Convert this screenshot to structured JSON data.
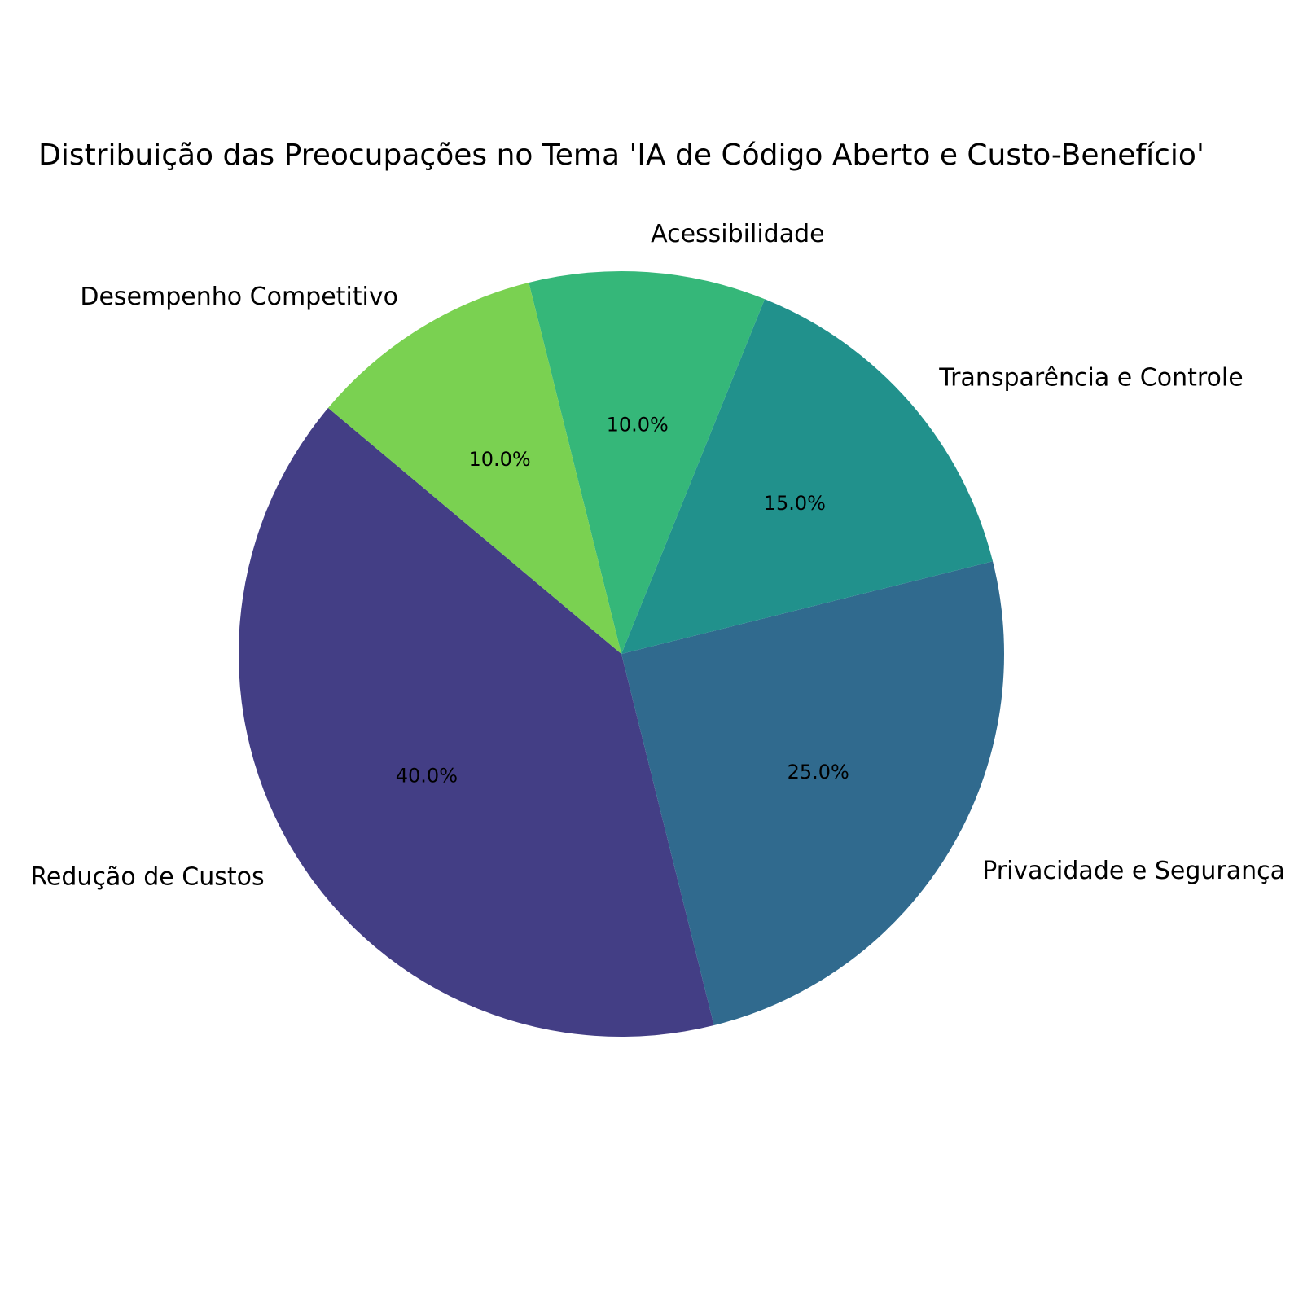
{
  "chart_data": {
    "type": "pie",
    "title": "Distribuição das Preocupações no Tema 'IA de Código Aberto e Custo-Benefício'",
    "categories": [
      "Redução de Custos",
      "Privacidade e Segurança",
      "Transparência e Controle",
      "Acessibilidade",
      "Desempenho Competitivo"
    ],
    "values": [
      40,
      25,
      15,
      10,
      10
    ],
    "percent_labels": [
      "40.0%",
      "25.0%",
      "15.0%",
      "10.0%",
      "10.0%"
    ],
    "colors": [
      "#433e85",
      "#306a8e",
      "#21918c",
      "#35b779",
      "#7ad151"
    ],
    "start_angle_deg": 140,
    "direction": "counterclockwise"
  }
}
